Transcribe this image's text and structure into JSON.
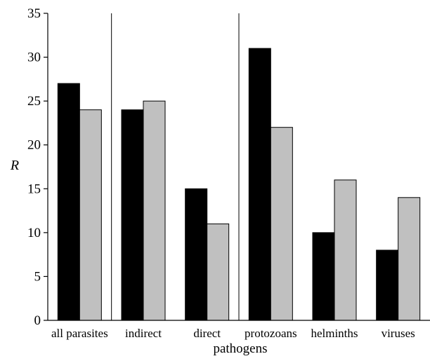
{
  "chart_data": {
    "type": "bar",
    "categories": [
      "all parasites",
      "indirect",
      "direct",
      "protozoans",
      "helminths",
      "viruses"
    ],
    "series": [
      {
        "values": [
          27,
          24,
          15,
          31,
          10,
          8
        ],
        "color": "#000000"
      },
      {
        "values": [
          24,
          25,
          11,
          22,
          16,
          14
        ],
        "color": "#c0c0c0"
      }
    ],
    "title": "",
    "xlabel": "pathogens",
    "ylabel": "R",
    "ylim": [
      0,
      35
    ],
    "yticks": [
      0,
      5,
      10,
      15,
      20,
      25,
      30,
      35
    ],
    "group_separators_after": [
      "all parasites",
      "direct"
    ],
    "grid": false,
    "legend": "none"
  }
}
